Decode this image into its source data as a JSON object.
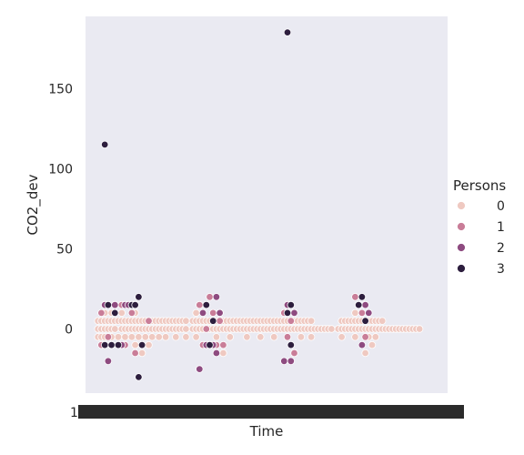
{
  "chart_data": {
    "type": "scatter",
    "xlabel": "Time",
    "ylabel": "CO2_dev",
    "ylim": [
      -40,
      195
    ],
    "yticks": [
      0,
      50,
      100,
      150
    ],
    "x_tick_first_label": "1",
    "grid": false,
    "background": "#eaeaf2",
    "legend": {
      "title": "Persons",
      "placement": "outside-right",
      "entries": [
        {
          "label": "0",
          "color": "#efc9c1"
        },
        {
          "label": "1",
          "color": "#c97d98"
        },
        {
          "label": "2",
          "color": "#8e4b80"
        },
        {
          "label": "3",
          "color": "#2d1e3e"
        }
      ]
    },
    "x_range": [
      0,
      100
    ],
    "notes_series_x_is_relative_index": false,
    "series": [
      {
        "persons": 0,
        "points": [
          [
            1,
            5
          ],
          [
            1,
            0
          ],
          [
            1,
            -5
          ],
          [
            2,
            5
          ],
          [
            2,
            0
          ],
          [
            2,
            -5
          ],
          [
            3,
            10
          ],
          [
            3,
            5
          ],
          [
            3,
            0
          ],
          [
            3,
            -5
          ],
          [
            4,
            5
          ],
          [
            4,
            0
          ],
          [
            4,
            -5
          ],
          [
            5,
            10
          ],
          [
            5,
            5
          ],
          [
            5,
            0
          ],
          [
            5,
            -5
          ],
          [
            6,
            5
          ],
          [
            6,
            0
          ],
          [
            7,
            5
          ],
          [
            7,
            -5
          ],
          [
            8,
            10
          ],
          [
            8,
            5
          ],
          [
            8,
            0
          ],
          [
            9,
            5
          ],
          [
            9,
            0
          ],
          [
            9,
            -5
          ],
          [
            10,
            5
          ],
          [
            10,
            0
          ],
          [
            11,
            5
          ],
          [
            11,
            0
          ],
          [
            11,
            -5
          ],
          [
            12,
            10
          ],
          [
            12,
            5
          ],
          [
            12,
            0
          ],
          [
            12,
            -10
          ],
          [
            13,
            5
          ],
          [
            13,
            0
          ],
          [
            13,
            -5
          ],
          [
            14,
            5
          ],
          [
            14,
            0
          ],
          [
            14,
            -15
          ],
          [
            15,
            5
          ],
          [
            15,
            0
          ],
          [
            15,
            -5
          ],
          [
            16,
            5
          ],
          [
            16,
            0
          ],
          [
            16,
            -10
          ],
          [
            17,
            5
          ],
          [
            17,
            0
          ],
          [
            17,
            -5
          ],
          [
            18,
            5
          ],
          [
            18,
            0
          ],
          [
            19,
            5
          ],
          [
            19,
            0
          ],
          [
            19,
            -5
          ],
          [
            20,
            5
          ],
          [
            20,
            0
          ],
          [
            21,
            5
          ],
          [
            21,
            0
          ],
          [
            21,
            -5
          ],
          [
            22,
            5
          ],
          [
            22,
            0
          ],
          [
            23,
            5
          ],
          [
            23,
            0
          ],
          [
            24,
            5
          ],
          [
            24,
            0
          ],
          [
            24,
            -5
          ],
          [
            25,
            5
          ],
          [
            25,
            0
          ],
          [
            26,
            5
          ],
          [
            26,
            0
          ],
          [
            27,
            5
          ],
          [
            27,
            0
          ],
          [
            27,
            -5
          ],
          [
            29,
            5
          ],
          [
            29,
            0
          ],
          [
            30,
            10
          ],
          [
            30,
            5
          ],
          [
            30,
            0
          ],
          [
            30,
            -5
          ],
          [
            31,
            5
          ],
          [
            31,
            0
          ],
          [
            32,
            5
          ],
          [
            32,
            0
          ],
          [
            33,
            5
          ],
          [
            33,
            0
          ],
          [
            33,
            -10
          ],
          [
            34,
            5
          ],
          [
            34,
            0
          ],
          [
            35,
            5
          ],
          [
            35,
            0
          ],
          [
            36,
            5
          ],
          [
            36,
            0
          ],
          [
            36,
            -5
          ],
          [
            37,
            10
          ],
          [
            37,
            5
          ],
          [
            37,
            0
          ],
          [
            38,
            5
          ],
          [
            38,
            0
          ],
          [
            38,
            -15
          ],
          [
            39,
            5
          ],
          [
            39,
            0
          ],
          [
            40,
            5
          ],
          [
            40,
            0
          ],
          [
            40,
            -5
          ],
          [
            41,
            5
          ],
          [
            41,
            0
          ],
          [
            42,
            5
          ],
          [
            42,
            0
          ],
          [
            43,
            5
          ],
          [
            43,
            0
          ],
          [
            44,
            5
          ],
          [
            44,
            0
          ],
          [
            45,
            5
          ],
          [
            45,
            0
          ],
          [
            45,
            -5
          ],
          [
            46,
            5
          ],
          [
            46,
            0
          ],
          [
            47,
            5
          ],
          [
            47,
            0
          ],
          [
            48,
            5
          ],
          [
            48,
            0
          ],
          [
            49,
            5
          ],
          [
            49,
            0
          ],
          [
            49,
            -5
          ],
          [
            50,
            5
          ],
          [
            50,
            0
          ],
          [
            51,
            5
          ],
          [
            51,
            0
          ],
          [
            52,
            5
          ],
          [
            52,
            0
          ],
          [
            53,
            5
          ],
          [
            53,
            0
          ],
          [
            53,
            -5
          ],
          [
            54,
            5
          ],
          [
            54,
            0
          ],
          [
            55,
            5
          ],
          [
            55,
            0
          ],
          [
            56,
            5
          ],
          [
            56,
            0
          ],
          [
            57,
            5
          ],
          [
            57,
            0
          ],
          [
            57,
            -5
          ],
          [
            58,
            5
          ],
          [
            58,
            0
          ],
          [
            59,
            5
          ],
          [
            59,
            0
          ],
          [
            60,
            5
          ],
          [
            60,
            0
          ],
          [
            61,
            5
          ],
          [
            61,
            0
          ],
          [
            61,
            -5
          ],
          [
            62,
            5
          ],
          [
            62,
            0
          ],
          [
            63,
            5
          ],
          [
            63,
            0
          ],
          [
            64,
            5
          ],
          [
            64,
            0
          ],
          [
            64,
            -5
          ],
          [
            65,
            0
          ],
          [
            66,
            0
          ],
          [
            67,
            0
          ],
          [
            68,
            0
          ],
          [
            69,
            0
          ],
          [
            70,
            0
          ],
          [
            72,
            0
          ],
          [
            73,
            5
          ],
          [
            73,
            0
          ],
          [
            73,
            -5
          ],
          [
            74,
            5
          ],
          [
            74,
            0
          ],
          [
            75,
            5
          ],
          [
            75,
            0
          ],
          [
            76,
            5
          ],
          [
            76,
            0
          ],
          [
            77,
            10
          ],
          [
            77,
            5
          ],
          [
            77,
            0
          ],
          [
            77,
            -5
          ],
          [
            78,
            5
          ],
          [
            78,
            0
          ],
          [
            79,
            10
          ],
          [
            79,
            5
          ],
          [
            79,
            0
          ],
          [
            80,
            5
          ],
          [
            80,
            0
          ],
          [
            80,
            -15
          ],
          [
            81,
            5
          ],
          [
            81,
            0
          ],
          [
            81,
            -5
          ],
          [
            82,
            5
          ],
          [
            82,
            0
          ],
          [
            82,
            -10
          ],
          [
            83,
            5
          ],
          [
            83,
            0
          ],
          [
            83,
            -5
          ],
          [
            84,
            5
          ],
          [
            84,
            0
          ],
          [
            85,
            5
          ],
          [
            85,
            0
          ],
          [
            86,
            0
          ],
          [
            87,
            0
          ],
          [
            88,
            0
          ],
          [
            89,
            0
          ],
          [
            90,
            0
          ],
          [
            91,
            0
          ],
          [
            92,
            0
          ],
          [
            93,
            0
          ],
          [
            94,
            0
          ],
          [
            95,
            0
          ],
          [
            96,
            0
          ]
        ]
      },
      {
        "persons": 1,
        "points": [
          [
            2,
            10
          ],
          [
            2,
            -10
          ],
          [
            3,
            15
          ],
          [
            4,
            -5
          ],
          [
            5,
            -10
          ],
          [
            8,
            15
          ],
          [
            9,
            -10
          ],
          [
            11,
            10
          ],
          [
            12,
            -15
          ],
          [
            16,
            5
          ],
          [
            31,
            15
          ],
          [
            32,
            -10
          ],
          [
            33,
            0
          ],
          [
            34,
            20
          ],
          [
            35,
            10
          ],
          [
            36,
            -10
          ],
          [
            37,
            5
          ],
          [
            38,
            -10
          ],
          [
            56,
            10
          ],
          [
            57,
            -5
          ],
          [
            58,
            5
          ],
          [
            59,
            -15
          ],
          [
            77,
            20
          ],
          [
            78,
            15
          ],
          [
            79,
            10
          ],
          [
            80,
            -5
          ],
          [
            81,
            10
          ]
        ]
      },
      {
        "persons": 2,
        "points": [
          [
            3,
            15
          ],
          [
            4,
            -20
          ],
          [
            6,
            15
          ],
          [
            8,
            -10
          ],
          [
            9,
            15
          ],
          [
            10,
            15
          ],
          [
            31,
            -25
          ],
          [
            32,
            10
          ],
          [
            33,
            -10
          ],
          [
            35,
            -10
          ],
          [
            36,
            -15
          ],
          [
            36,
            20
          ],
          [
            37,
            10
          ],
          [
            56,
            -20
          ],
          [
            57,
            15
          ],
          [
            58,
            -20
          ],
          [
            59,
            10
          ],
          [
            78,
            15
          ],
          [
            79,
            -10
          ],
          [
            80,
            15
          ],
          [
            81,
            10
          ]
        ]
      },
      {
        "persons": 3,
        "points": [
          [
            3,
            115
          ],
          [
            3,
            -10
          ],
          [
            4,
            15
          ],
          [
            5,
            -10
          ],
          [
            6,
            10
          ],
          [
            7,
            -10
          ],
          [
            11,
            15
          ],
          [
            12,
            15
          ],
          [
            13,
            -30
          ],
          [
            13,
            20
          ],
          [
            14,
            -10
          ],
          [
            33,
            15
          ],
          [
            34,
            -10
          ],
          [
            35,
            5
          ],
          [
            57,
            185
          ],
          [
            57,
            10
          ],
          [
            58,
            15
          ],
          [
            58,
            -10
          ],
          [
            78,
            15
          ],
          [
            79,
            20
          ],
          [
            80,
            5
          ]
        ]
      }
    ]
  }
}
